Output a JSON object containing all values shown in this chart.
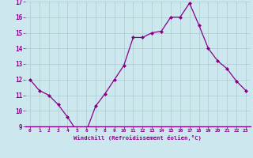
{
  "x": [
    0,
    1,
    2,
    3,
    4,
    5,
    6,
    7,
    8,
    9,
    10,
    11,
    12,
    13,
    14,
    15,
    16,
    17,
    18,
    19,
    20,
    21,
    22,
    23
  ],
  "y": [
    12.0,
    11.3,
    11.0,
    10.4,
    9.6,
    8.7,
    8.7,
    10.3,
    11.1,
    12.0,
    12.9,
    14.7,
    14.7,
    15.0,
    15.1,
    16.0,
    16.0,
    16.9,
    15.5,
    14.0,
    13.2,
    12.7,
    11.9,
    11.3
  ],
  "xlabel": "Windchill (Refroidissement éolien,°C)",
  "ylim": [
    9,
    17
  ],
  "yticks": [
    9,
    10,
    11,
    12,
    13,
    14,
    15,
    16,
    17
  ],
  "xticks": [
    0,
    1,
    2,
    3,
    4,
    5,
    6,
    7,
    8,
    9,
    10,
    11,
    12,
    13,
    14,
    15,
    16,
    17,
    18,
    19,
    20,
    21,
    22,
    23
  ],
  "line_color": "#880088",
  "marker_color": "#880088",
  "bg_color": "#cce8ee",
  "grid_color": "#aacccc",
  "tick_label_color": "#880088",
  "xlabel_color": "#880088",
  "border_color": "#880088",
  "figsize": [
    3.2,
    2.0
  ],
  "dpi": 100
}
